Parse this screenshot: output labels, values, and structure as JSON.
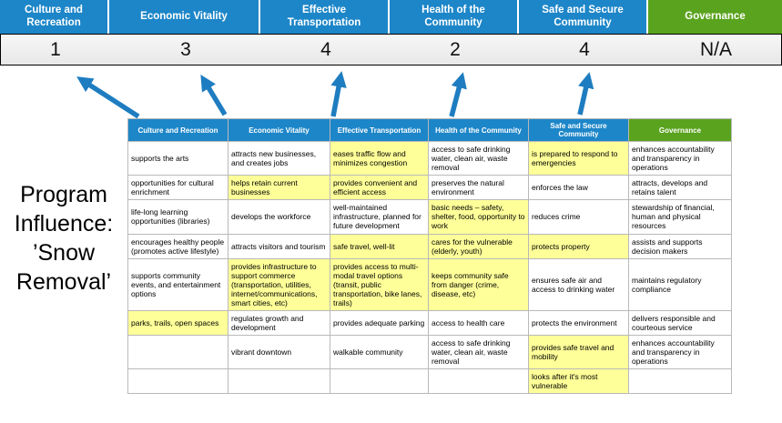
{
  "colors": {
    "header_blue": "#1d86c8",
    "header_green": "#5aa31e",
    "highlight_yellow": "#ffff99",
    "arrow_blue": "#1e7dc0"
  },
  "program_title": "Program\nInfluence:\n’Snow\nRemoval’",
  "pillars": [
    {
      "label": "Culture and Recreation",
      "score": "1"
    },
    {
      "label": "Economic Vitality",
      "score": "3"
    },
    {
      "label": "Effective Transportation",
      "score": "4"
    },
    {
      "label": "Health of the Community",
      "score": "2"
    },
    {
      "label": "Safe and Secure Community",
      "score": "4"
    },
    {
      "label": "Governance",
      "score": "N/A"
    }
  ],
  "matrix": {
    "headers": [
      {
        "label": "Culture and Recreation"
      },
      {
        "label": "Economic Vitality"
      },
      {
        "label": "Effective Transportation"
      },
      {
        "label": "Health of the Community"
      },
      {
        "label": "Safe and Secure Community"
      },
      {
        "label": "Governance"
      }
    ],
    "rows": [
      [
        {
          "text": "supports the arts",
          "hl": false
        },
        {
          "text": "attracts new businesses, and creates jobs",
          "hl": false
        },
        {
          "text": "eases traffic flow and minimizes congestion",
          "hl": true
        },
        {
          "text": "access to safe drinking water, clean air, waste removal",
          "hl": false
        },
        {
          "text": "is prepared to respond to emergencies",
          "hl": true
        },
        {
          "text": "enhances accountability and transparency in operations",
          "hl": false
        }
      ],
      [
        {
          "text": "opportunities for cultural enrichment",
          "hl": false
        },
        {
          "text": "helps retain current businesses",
          "hl": true
        },
        {
          "text": "provides convenient and efficient access",
          "hl": true
        },
        {
          "text": "preserves the natural environment",
          "hl": false
        },
        {
          "text": "enforces the law",
          "hl": false
        },
        {
          "text": "attracts, develops and retains talent",
          "hl": false
        }
      ],
      [
        {
          "text": "life-long learning opportunities (libraries)",
          "hl": false
        },
        {
          "text": "develops the workforce",
          "hl": false
        },
        {
          "text": "well-maintained infrastructure, planned for future development",
          "hl": false
        },
        {
          "text": "basic needs – safety, shelter, food, opportunity to work",
          "hl": true
        },
        {
          "text": "reduces crime",
          "hl": false
        },
        {
          "text": "stewardship of financial, human and physical resources",
          "hl": false
        }
      ],
      [
        {
          "text": "encourages healthy people (promotes active lifestyle)",
          "hl": false
        },
        {
          "text": "attracts visitors and tourism",
          "hl": false
        },
        {
          "text": "safe travel, well-lit",
          "hl": true
        },
        {
          "text": "cares for the vulnerable (elderly, youth)",
          "hl": true
        },
        {
          "text": "protects property",
          "hl": true
        },
        {
          "text": "assists and supports decision makers",
          "hl": false
        }
      ],
      [
        {
          "text": "supports community events, and entertainment options",
          "hl": false
        },
        {
          "text": "provides infrastructure to support commerce (transportation, utilities, internet/communications, smart cities, etc)",
          "hl": true
        },
        {
          "text": "provides access to multi-modal travel options (transit, public transportation, bike lanes, trails)",
          "hl": true
        },
        {
          "text": "keeps community safe from danger (crime, disease, etc)",
          "hl": true
        },
        {
          "text": "ensures safe air and access to drinking water",
          "hl": false
        },
        {
          "text": "maintains regulatory compliance",
          "hl": false
        }
      ],
      [
        {
          "text": "parks, trails, open spaces",
          "hl": true
        },
        {
          "text": "regulates growth and development",
          "hl": false
        },
        {
          "text": "provides adequate parking",
          "hl": false
        },
        {
          "text": "access to health care",
          "hl": false
        },
        {
          "text": "protects the environment",
          "hl": false
        },
        {
          "text": "delivers responsible and courteous service",
          "hl": false
        }
      ],
      [
        {
          "text": "",
          "hl": false
        },
        {
          "text": "vibrant downtown",
          "hl": false
        },
        {
          "text": "walkable community",
          "hl": false
        },
        {
          "text": "access to safe drinking water, clean air, waste removal",
          "hl": false
        },
        {
          "text": "provides safe travel and mobility",
          "hl": true
        },
        {
          "text": "enhances accountability and transparency in operations",
          "hl": false
        }
      ],
      [
        {
          "text": "",
          "hl": false
        },
        {
          "text": "",
          "hl": false
        },
        {
          "text": "",
          "hl": false
        },
        {
          "text": "",
          "hl": false
        },
        {
          "text": "looks after it's most vulnerable",
          "hl": true
        },
        {
          "text": "",
          "hl": false
        }
      ]
    ]
  }
}
